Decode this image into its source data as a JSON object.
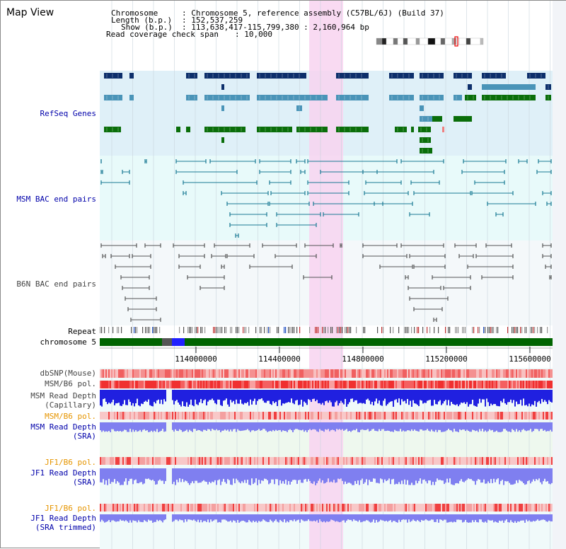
{
  "title": "Map View",
  "header": {
    "chromosome_key": "Chromosome",
    "chromosome_value": ": Chromosome 5, reference assembly (C57BL/6J) (Build 37)",
    "length_key": "Length (b.p.)",
    "length_value": ": 152,537,259",
    "show_key": "Show (b.p.)",
    "show_value": ": 113,638,417-115,799,380 : 2,160,964 bp",
    "coverage_key": "Read coverage check span",
    "coverage_value": ": 10,000"
  },
  "tracks": {
    "refseq": "RefSeq Genes",
    "msm_bac": "MSM BAC end pairs",
    "b6n_bac": "B6N BAC end pairs",
    "repeat": "Repeat",
    "chromosome": "chromosome 5",
    "dbsnp": "dbSNP(Mouse)",
    "msm_b6_pol": "MSM/B6 pol.",
    "msm_read_depth_cap_1": "MSM Read Depth",
    "msm_read_depth_cap_2": "(Capillary)",
    "msm_b6_pol_2": "MSM/B6 pol.",
    "msm_read_depth_sra_1": "MSM Read Depth",
    "msm_read_depth_sra_2": "(SRA)",
    "jf1_b6_pol": "JF1/B6 pol.",
    "jf1_read_depth_sra_1": "JF1 Read Depth",
    "jf1_read_depth_sra_2": "(SRA)",
    "jf1_b6_pol_2": "JF1/B6 pol.",
    "jf1_read_depth_trim_1": "JF1 Read Depth",
    "jf1_read_depth_trim_2": "(SRA trimmed)"
  },
  "axis": {
    "ticks": [
      "114000000",
      "114400000",
      "114800000",
      "115200000",
      "115600000"
    ]
  },
  "colors": {
    "refseq_dark": "#0d2f6b",
    "refseq_mid": "#4a94b8",
    "refseq_green": "#0a6e0a",
    "refseq_bg": "#dff0f8",
    "msm_bac_line": "#1a7a94",
    "msm_bac_bg": "#e8fafa",
    "b6n_bac_line": "#555555",
    "b6n_bac_bg": "#f4f8fa",
    "highlight": "#f8d4f0",
    "chromosome_bar": "#006400",
    "snp_red": "#e83232",
    "depth_blue": "#2020e0",
    "depth_light": "#7f7ff0"
  }
}
